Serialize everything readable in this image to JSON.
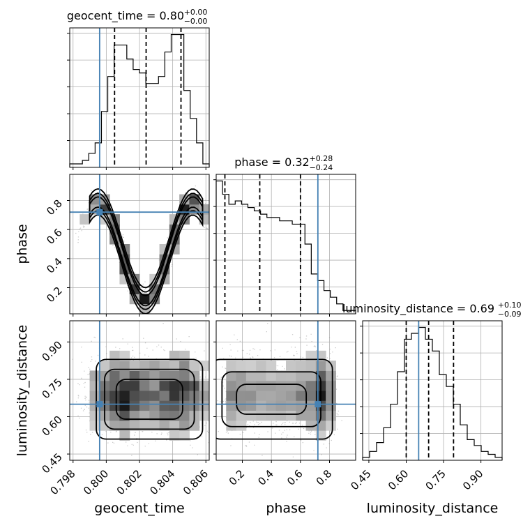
{
  "chart_data": {
    "type": "corner",
    "parameters": [
      {
        "name": "geocent_time",
        "range": [
          0.7978,
          0.8062
        ],
        "ticks": [
          "0.798",
          "0.800",
          "0.802",
          "0.804",
          "0.806"
        ],
        "tick_values": [
          0.798,
          0.8,
          0.802,
          0.804,
          0.806
        ],
        "title": {
          "text": "geocent_time = 0.80",
          "sup": "+0.00",
          "sub": "−0.00"
        },
        "median": 0.8024,
        "q16": 0.8005,
        "q84": 0.8045,
        "truth": 0.7996,
        "hist": [
          1,
          1,
          2,
          4,
          7,
          16,
          26,
          35,
          35,
          31,
          28,
          27,
          24,
          24,
          26,
          33,
          38,
          38,
          22,
          14,
          7,
          1
        ]
      },
      {
        "name": "phase",
        "range": [
          0.02,
          0.98
        ],
        "ticks": [
          "0.2",
          "0.4",
          "0.6",
          "0.8"
        ],
        "tick_values": [
          0.2,
          0.4,
          0.6,
          0.8
        ],
        "title": {
          "text": "phase = 0.32",
          "sup": "+0.28",
          "sub": "−0.24"
        },
        "median": 0.32,
        "q16": 0.08,
        "q84": 0.6,
        "truth": 0.72,
        "hist": [
          40,
          36,
          33,
          34,
          33,
          32,
          31,
          30,
          29,
          29,
          28,
          28,
          27,
          27,
          21,
          12,
          10,
          7,
          5,
          3,
          1,
          1
        ]
      },
      {
        "name": "luminosity_distance",
        "range": [
          0.425,
          0.985
        ],
        "ticks": [
          "0.45",
          "0.60",
          "0.75",
          "0.90"
        ],
        "tick_values": [
          0.45,
          0.6,
          0.75,
          0.9
        ],
        "title": {
          "text": "luminosity_distance = 0.69",
          "sup": "+0.10",
          "sub": "−0.09"
        },
        "median": 0.69,
        "q16": 0.6,
        "q84": 0.79,
        "truth": 0.65,
        "hist": [
          1,
          3,
          6,
          11,
          19,
          30,
          41,
          43,
          45,
          41,
          37,
          29,
          25,
          19,
          12,
          7,
          5,
          3,
          2,
          1
        ]
      }
    ]
  }
}
